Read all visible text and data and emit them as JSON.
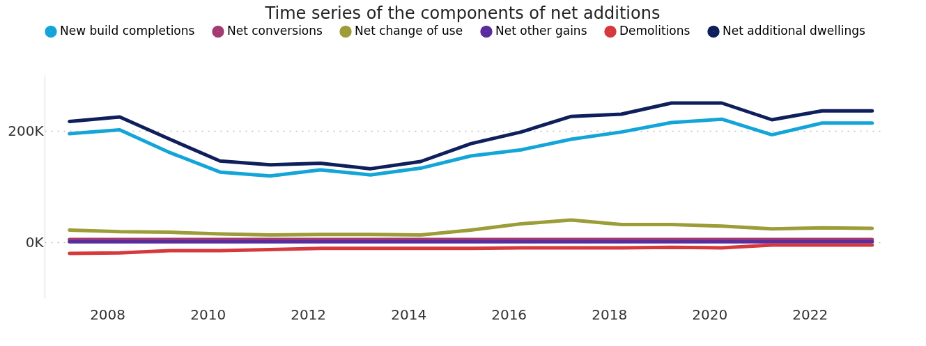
{
  "chart_data": {
    "type": "line",
    "title": "Time series of the components of net additions",
    "x": [
      "2007-03-31",
      "2008-03-31",
      "2009-03-31",
      "2010-03-31",
      "2011-03-31",
      "2012-03-31",
      "2013-03-31",
      "2014-03-31",
      "2015-03-31",
      "2016-03-31",
      "2017-03-31",
      "2018-03-31",
      "2019-03-31",
      "2020-03-31",
      "2021-03-31",
      "2022-03-31",
      "2023-03-31"
    ],
    "series": [
      {
        "name": "New build completions",
        "color": "#14a5d8",
        "values": [
          195000,
          202000,
          161000,
          126000,
          119000,
          130000,
          121000,
          133000,
          155000,
          166000,
          185000,
          198000,
          215000,
          221000,
          193000,
          214000,
          214000
        ]
      },
      {
        "name": "Net conversions",
        "color": "#a33b72",
        "values": [
          5000,
          5000,
          5000,
          5000,
          5000,
          5000,
          5000,
          5000,
          5000,
          5000,
          5000,
          5000,
          5000,
          5000,
          5000,
          5000,
          5000
        ]
      },
      {
        "name": "Net change of use",
        "color": "#9c9c38",
        "values": [
          22000,
          19000,
          18000,
          15000,
          13000,
          14000,
          14000,
          13000,
          22000,
          33000,
          40000,
          32000,
          32000,
          29000,
          24000,
          26000,
          25000
        ]
      },
      {
        "name": "Net other gains",
        "color": "#5a2d9c",
        "values": [
          1000,
          1000,
          1000,
          1000,
          1000,
          1000,
          1000,
          1000,
          1000,
          1000,
          1000,
          1000,
          1000,
          1000,
          1000,
          1000,
          1000
        ]
      },
      {
        "name": "Demolitions",
        "color": "#d6393b",
        "values": [
          -20000,
          -19000,
          -15000,
          -15000,
          -13000,
          -11000,
          -11000,
          -11000,
          -11000,
          -10000,
          -10000,
          -10000,
          -9000,
          -10000,
          -5000,
          -5000,
          -5000
        ]
      },
      {
        "name": "Net additional dwellings",
        "color": "#0e1f5b",
        "values": [
          217000,
          225000,
          185000,
          146000,
          139000,
          142000,
          132000,
          145000,
          177000,
          198000,
          226000,
          230000,
          250000,
          250000,
          220000,
          236000,
          236000
        ]
      }
    ],
    "xlim": [
      "2006-10-01",
      "2023-06-01"
    ],
    "xticks": [
      {
        "value": "2008",
        "label": "2008"
      },
      {
        "value": "2010",
        "label": "2010"
      },
      {
        "value": "2012",
        "label": "2012"
      },
      {
        "value": "2014",
        "label": "2014"
      },
      {
        "value": "2016",
        "label": "2016"
      },
      {
        "value": "2018",
        "label": "2018"
      },
      {
        "value": "2020",
        "label": "2020"
      },
      {
        "value": "2022",
        "label": "2022"
      }
    ],
    "ylim": [
      -100000,
      300000
    ],
    "yticks": [
      {
        "value": 0,
        "label": "0K"
      },
      {
        "value": 200000,
        "label": "200K"
      }
    ],
    "grid": "y",
    "legend": "top",
    "marker": "none",
    "line_style": "solid"
  }
}
